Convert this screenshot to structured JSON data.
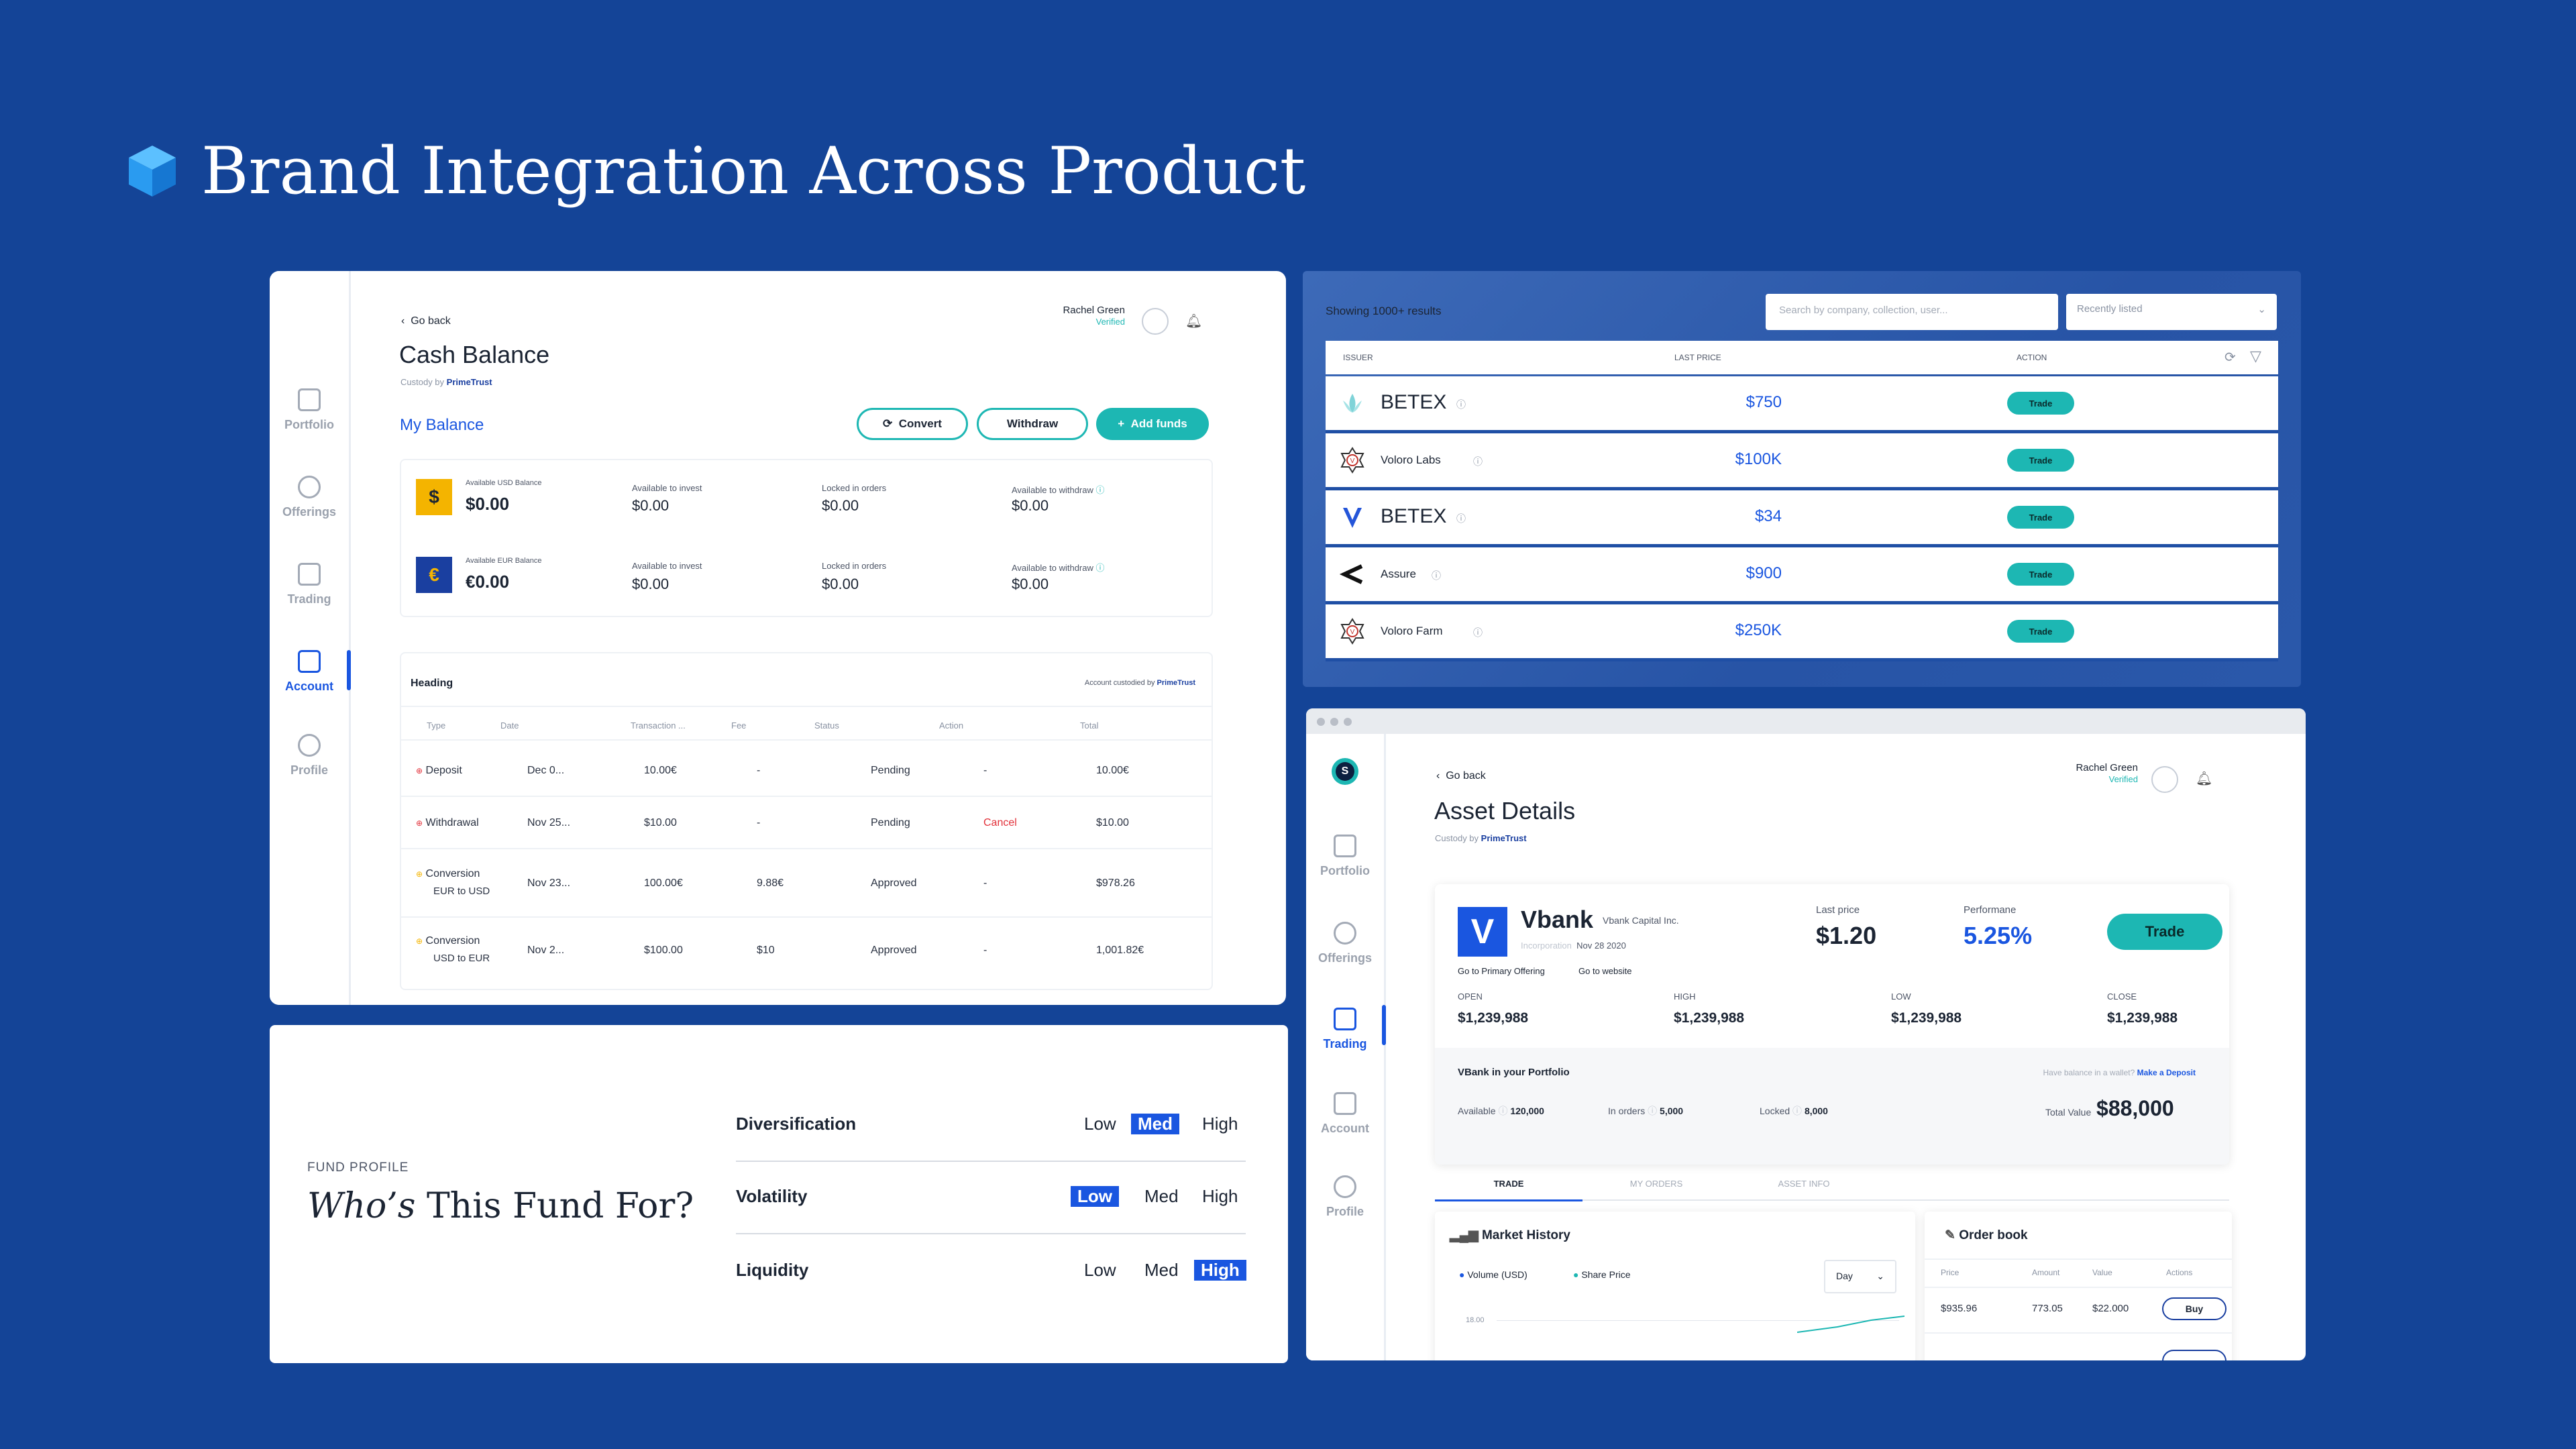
{
  "headline": {
    "title": "Brand Integration Across Product",
    "icon": "cube-icon",
    "icon_color": "#2a9bf0"
  },
  "colors": {
    "background": "#144497",
    "accent_teal": "#1db7b3",
    "accent_blue": "#1a56e0",
    "cancel_red": "#e2313a"
  },
  "nav": [
    "Portfolio",
    "Offerings",
    "Trading",
    "Account",
    "Profile"
  ],
  "cash": {
    "go_back": "Go back",
    "title": "Cash Balance",
    "custody_prefix": "Custody by",
    "custody_brand": "PrimeTrust",
    "user_name": "Rachel Green",
    "user_status": "Verified",
    "my_balance": "My Balance",
    "buttons": {
      "convert": "Convert",
      "withdraw": "Withdraw",
      "add_funds": "Add funds"
    },
    "balances": [
      {
        "symbol": "$",
        "symbol_bg": "#f4b400",
        "label": "Available USD Balance",
        "amount": "$0.00",
        "invest_label": "Available to invest",
        "invest": "$0.00",
        "locked_label": "Locked in orders",
        "locked": "$0.00",
        "withdraw_label": "Available to withdraw",
        "withdraw": "$0.00"
      },
      {
        "symbol": "€",
        "symbol_bg": "#1a3fa0",
        "label": "Available EUR Balance",
        "amount": "€0.00",
        "invest_label": "Available to invest",
        "invest": "$0.00",
        "locked_label": "Locked in orders",
        "locked": "$0.00",
        "withdraw_label": "Available to withdraw",
        "withdraw": "$0.00"
      }
    ],
    "history_heading": "Heading",
    "custodied_prefix": "Account custodied by",
    "custodied_brand": "PrimeTrust",
    "columns": [
      "Type",
      "Date",
      "Transaction ...",
      "Fee",
      "Status",
      "Action",
      "Total"
    ],
    "rows": [
      {
        "type": "Deposit",
        "sub": "",
        "date": "Dec 0...",
        "transaction": "10.00€",
        "fee": "-",
        "status": "Pending",
        "action": "-",
        "total": "10.00€"
      },
      {
        "type": "Withdrawal",
        "sub": "",
        "date": "Nov 25...",
        "transaction": "$10.00",
        "fee": "-",
        "status": "Pending",
        "action": "Cancel",
        "total": "$10.00"
      },
      {
        "type": "Conversion",
        "sub": "EUR to USD",
        "date": "Nov 23...",
        "transaction": "100.00€",
        "fee": "9.88€",
        "status": "Approved",
        "action": "-",
        "total": "$978.26"
      },
      {
        "type": "Conversion",
        "sub": "USD to EUR",
        "date": "Nov 2...",
        "transaction": "$100.00",
        "fee": "$10",
        "status": "Approved",
        "action": "-",
        "total": "1,001.82€"
      }
    ]
  },
  "market": {
    "results": "Showing 1000+ results",
    "search_placeholder": "Search by company, collection, user...",
    "sort": "Recently listed",
    "columns": [
      "ISSUER",
      "LAST PRICE",
      "ACTION"
    ],
    "trade_label": "Trade",
    "rows": [
      {
        "name": "BETEX",
        "large": true,
        "logo": "lotus-icon",
        "price": "$750"
      },
      {
        "name": "Voloro Labs",
        "large": false,
        "logo": "badge-v-icon",
        "price": "$100K"
      },
      {
        "name": "BETEX",
        "large": true,
        "logo": "v-logo-icon",
        "price": "$34"
      },
      {
        "name": "Assure",
        "large": false,
        "logo": "chevron-left-logo-icon",
        "price": "$900"
      },
      {
        "name": "Voloro Farm",
        "large": false,
        "logo": "badge-v-icon",
        "price": "$250K"
      }
    ]
  },
  "fund": {
    "eyebrow": "FUND PROFILE",
    "title_italic": "Who’s",
    "title_rest": " This Fund For?",
    "metrics": [
      {
        "name": "Diversification",
        "low": "Low",
        "med": "Med",
        "high": "High",
        "selected": "Med"
      },
      {
        "name": "Volatility",
        "low": "Low",
        "med": "Med",
        "high": "High",
        "selected": "Low"
      },
      {
        "name": "Liquidity",
        "low": "Low",
        "med": "Med",
        "high": "High",
        "selected": "High"
      }
    ]
  },
  "asset": {
    "go_back": "Go back",
    "title": "Asset Details",
    "custody_prefix": "Custody by",
    "custody_brand": "PrimeTrust",
    "user_name": "Rachel Green",
    "user_status": "Verified",
    "logo_letter": "V",
    "name": "Vbank",
    "company": "Vbank Capital Inc.",
    "inc_label": "Incorporation",
    "inc_date": "Nov 28 2020",
    "last_price_label": "Last price",
    "last_price": "$1.20",
    "performance_label": "Performane",
    "performance": "5.25%",
    "trade": "Trade",
    "link_offering": "Go to Primary Offering",
    "link_website": "Go to website",
    "ohlc": [
      {
        "label": "OPEN",
        "value": "$1,239,988"
      },
      {
        "label": "HIGH",
        "value": "$1,239,988"
      },
      {
        "label": "LOW",
        "value": "$1,239,988"
      },
      {
        "label": "CLOSE",
        "value": "$1,239,988"
      }
    ],
    "portfolio_heading": "VBank in your Portfolio",
    "wallet_question": "Have balance in a wallet?",
    "make_deposit": "Make a Deposit",
    "available_label": "Available",
    "available": "120,000",
    "in_orders_label": "In orders",
    "in_orders": "5,000",
    "locked_label": "Locked",
    "locked": "8,000",
    "total_label": "Total Value",
    "total": "$88,000",
    "tabs": [
      "TRADE",
      "MY ORDERS",
      "ASSET INFO"
    ],
    "market_history": "Market History",
    "legend_volume": "Volume (USD)",
    "legend_share": "Share Price",
    "range": "Day",
    "y_tick": "18.00",
    "order_book": "Order book",
    "ob_columns": [
      "Price",
      "Amount",
      "Value",
      "Actions"
    ],
    "ob_row": {
      "price": "$935.96",
      "amount": "773.05",
      "value": "$22.000",
      "action": "Buy"
    }
  }
}
